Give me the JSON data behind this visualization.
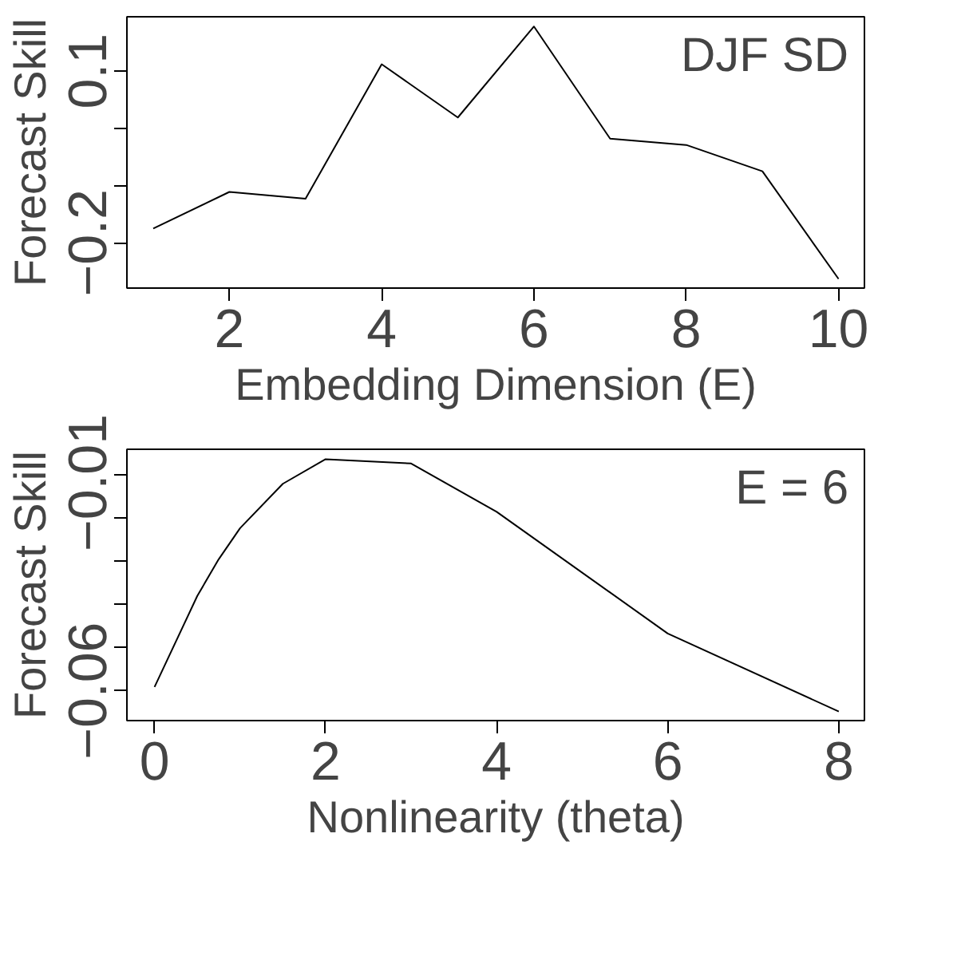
{
  "chart_data": [
    {
      "type": "line",
      "xlabel": "Embedding Dimension (E)",
      "ylabel": "Forecast Skill",
      "annotations": [
        "DJF SD"
      ],
      "x": [
        1,
        2,
        3,
        4,
        5,
        6,
        7,
        8,
        9,
        10
      ],
      "series": [
        {
          "color": "#000000",
          "values": [
            -0.175,
            -0.111,
            -0.123,
            0.112,
            0.019,
            0.178,
            -0.018,
            -0.029,
            -0.075,
            -0.263
          ]
        }
      ],
      "xlim": [
        0.654,
        10.34
      ],
      "ylim": [
        -0.279,
        0.195
      ],
      "xticks": [
        2,
        4,
        6,
        8,
        10
      ],
      "yticks": [
        {
          "value": 0.1,
          "label": "0.1"
        },
        {
          "value": 0.0,
          "label": null
        },
        {
          "value": -0.1,
          "label": null
        },
        {
          "value": -0.2,
          "label": "−0.2"
        }
      ]
    },
    {
      "type": "line",
      "xlabel": "Nonlinearity (theta)",
      "ylabel": "Forecast Skill",
      "annotations": [
        "E = 6"
      ],
      "x": [
        0,
        0.5,
        0.75,
        1,
        1.5,
        2,
        3,
        4,
        6,
        8
      ],
      "series": [
        {
          "color": "#000000",
          "values": [
            -0.0591,
            -0.038,
            -0.0295,
            -0.0223,
            -0.012,
            -0.0063,
            -0.0073,
            -0.0185,
            -0.0467,
            -0.0648
          ]
        }
      ],
      "xlim": [
        -0.323,
        8.3
      ],
      "ylim": [
        -0.0669,
        -0.004
      ],
      "xticks": [
        0,
        2,
        4,
        6,
        8
      ],
      "yticks": [
        {
          "value": -0.01,
          "label": "−0.01"
        },
        {
          "value": -0.02,
          "label": null
        },
        {
          "value": -0.03,
          "label": null
        },
        {
          "value": -0.04,
          "label": null
        },
        {
          "value": -0.05,
          "label": null
        },
        {
          "value": -0.06,
          "label": "−0.06"
        }
      ]
    }
  ]
}
